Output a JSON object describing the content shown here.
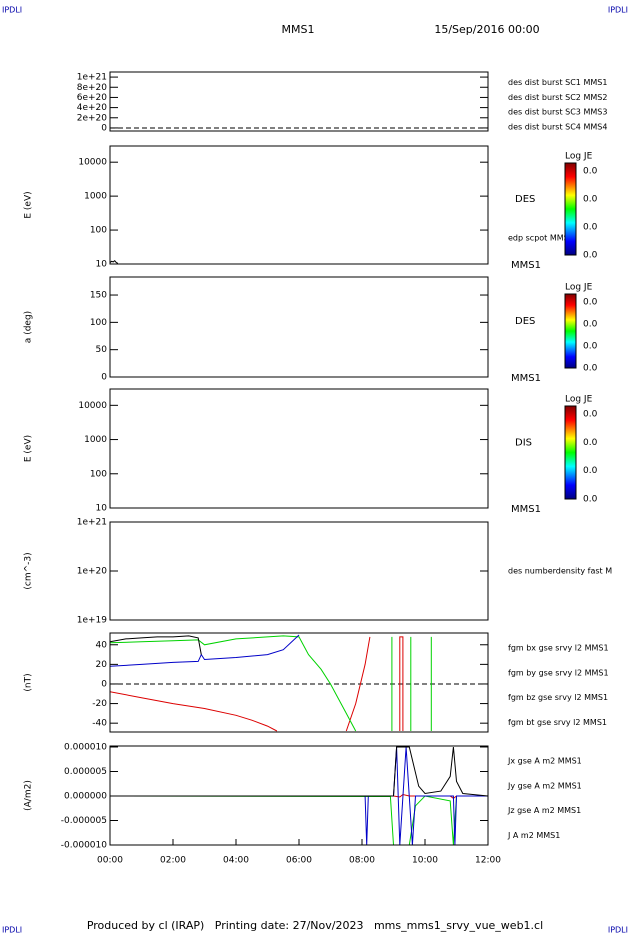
{
  "header": {
    "corner_left": "IPDLI",
    "corner_right": "IPDLI",
    "probe": "MMS1",
    "date": "15/Sep/2016 00:00"
  },
  "footer": {
    "text": "Produced by cl (IRAP)   Printing date: 27/Nov/2023   mms_mms1_srvy_vue_web1.cl",
    "corner_left": "IPDLI",
    "corner_right": "IPDLI"
  },
  "chart_data": [
    {
      "type": "line",
      "xlim": [
        0,
        12
      ],
      "ylim": [
        -6e+19,
        1.1e+21
      ],
      "yticks": [
        0,
        {
          "value": 2e+20,
          "label": "2e+20"
        },
        {
          "value": 4e+20,
          "label": "4e+20"
        },
        {
          "value": 6e+20,
          "label": "6e+20"
        },
        {
          "value": 8e+20,
          "label": "8e+20"
        },
        {
          "value": 1e+21,
          "label": "1e+21"
        }
      ],
      "zero_line": true,
      "series": [
        {
          "name": "des dist burst SC1 MMS1",
          "color": "#0000c8",
          "x": [],
          "values": []
        },
        {
          "name": "des dist burst SC2 MMS2",
          "color": "#c800c8",
          "x": [],
          "values": []
        },
        {
          "name": "des dist burst SC3 MMS3",
          "color": "#c80000",
          "x": [],
          "values": []
        },
        {
          "name": "des dist burst SC4 MMS4",
          "color": "#00c800",
          "x": [],
          "values": []
        }
      ]
    },
    {
      "type": "line",
      "ylabel": "E (eV)",
      "log": true,
      "xlim": [
        0,
        12
      ],
      "ylim": [
        10,
        30000
      ],
      "yticks": [
        10,
        100,
        1000,
        10000
      ],
      "label": "DES",
      "note": "edp scpot MMS1",
      "probe": "MMS1",
      "series": [
        {
          "color": "#000000",
          "x": [
            0,
            0.05,
            0.1,
            0.15,
            0.2,
            0.25
          ],
          "values": [
            11,
            12,
            11.5,
            12.5,
            11,
            10.5
          ]
        }
      ],
      "colorbar": {
        "title": "Log JE",
        "ticks": [
          "0.0",
          "0.0",
          "0.0",
          "0.0"
        ]
      }
    },
    {
      "type": "line",
      "ylabel": "a (deg)",
      "xlim": [
        0,
        12
      ],
      "ylim": [
        0,
        183
      ],
      "yticks": [
        0,
        50,
        100,
        150
      ],
      "label": "DES",
      "probe": "MMS1",
      "series": [],
      "colorbar": {
        "title": "Log JE",
        "ticks": [
          "0.0",
          "0.0",
          "0.0",
          "0.0"
        ]
      }
    },
    {
      "type": "line",
      "ylabel": "E (eV)",
      "log": true,
      "xlim": [
        0,
        12
      ],
      "ylim": [
        10,
        30000
      ],
      "yticks": [
        10,
        100,
        1000,
        10000
      ],
      "label": "DIS",
      "probe": "MMS1",
      "series": [],
      "colorbar": {
        "title": "Log JE",
        "ticks": [
          "0.0",
          "0.0",
          "0.0",
          "0.0"
        ]
      }
    },
    {
      "type": "line",
      "ylabel": "(cm^-3)",
      "log": true,
      "xlim": [
        0,
        12
      ],
      "ylim": [
        1e+19,
        1e+21
      ],
      "yticks": [
        {
          "value": 1e+19,
          "label": "1e+19"
        },
        {
          "value": 1e+20,
          "label": "1e+20"
        },
        {
          "value": 1e+21,
          "label": "1e+21"
        }
      ],
      "note": "des numberdensity fast M",
      "series": []
    },
    {
      "type": "line",
      "ylabel": "(nT)",
      "xlim": [
        0,
        12
      ],
      "ylim": [
        -49,
        52
      ],
      "yticks": [
        -40,
        -20,
        0,
        20,
        40
      ],
      "zero_line": true,
      "series": [
        {
          "name": "fgm bx gse srvy l2 MMS1",
          "color": "#dc0000",
          "x": [
            0,
            1,
            2,
            3,
            4,
            4.5,
            5,
            5.3,
            6,
            7.5,
            7.8,
            8.1,
            8.25,
            8.5,
            9.2,
            9.2,
            9.3,
            9.3
          ],
          "values": [
            -8,
            -14,
            -20,
            -25,
            -32,
            -37,
            -43,
            -48,
            null,
            -48,
            -20,
            20,
            48,
            null,
            -48,
            48,
            48,
            -48
          ]
        },
        {
          "name": "fgm by gse srvy l2 MMS1",
          "color": "#00d200",
          "x": [
            0,
            1,
            2,
            2.8,
            3,
            4,
            5,
            5.5,
            6,
            6.3,
            6.7,
            7,
            7.5,
            7.8,
            7.9,
            8.95,
            8.95,
            9.2,
            9.55,
            9.55,
            9.8,
            10.2,
            10.2
          ],
          "values": [
            42,
            43,
            44,
            45,
            40,
            46,
            48,
            49,
            48,
            30,
            15,
            0,
            -30,
            -48,
            null,
            -48,
            48,
            null,
            48,
            -48,
            null,
            -48,
            48
          ]
        },
        {
          "name": "fgm bz gse srvy l2 MMS1",
          "color": "#0000c8",
          "x": [
            0,
            1,
            2,
            2.8,
            2.9,
            3,
            4,
            5,
            5.5,
            6
          ],
          "values": [
            18,
            20,
            22,
            23,
            30,
            25,
            27,
            30,
            35,
            50
          ]
        },
        {
          "name": "fgm bt gse srvy l2 MMS1",
          "color": "#000000",
          "x": [
            0,
            0.5,
            1,
            1.5,
            2,
            2.5,
            2.8,
            2.9
          ],
          "values": [
            43,
            46,
            47,
            48,
            48,
            49,
            47,
            30
          ]
        }
      ]
    },
    {
      "type": "line",
      "ylabel": "(A/m2)",
      "xlim": [
        0,
        12
      ],
      "ylim": [
        -1e-05,
        1.02e-05
      ],
      "yticks": [
        {
          "value": -1e-05,
          "label": "-0.000010"
        },
        {
          "value": -5e-06,
          "label": "-0.000005"
        },
        {
          "value": 0,
          "label": "0.000000"
        },
        {
          "value": 5e-06,
          "label": "0.000005"
        },
        {
          "value": 1e-05,
          "label": "0.000010"
        }
      ],
      "xticks": [
        {
          "value": 0,
          "label": "00:00"
        },
        {
          "value": 2,
          "label": "02:00"
        },
        {
          "value": 4,
          "label": "04:00"
        },
        {
          "value": 6,
          "label": "06:00"
        },
        {
          "value": 8,
          "label": "08:00"
        },
        {
          "value": 10,
          "label": "10:00"
        },
        {
          "value": 12,
          "label": "12:00"
        }
      ],
      "series": [
        {
          "name": "Jx gse A m2 MMS1",
          "color": "#dc0000",
          "x": [
            0,
            8,
            9,
            9.2,
            9.3,
            9.5,
            10,
            10.8,
            10.9,
            11,
            12
          ],
          "values": [
            0,
            0,
            0,
            -2e-07,
            3e-07,
            0,
            0,
            0,
            -5e-07,
            0,
            0
          ]
        },
        {
          "name": "Jy gse A m2 MMS1",
          "color": "#00d200",
          "x": [
            0,
            8.9,
            9,
            9.2,
            9.5,
            9.7,
            10,
            10.8,
            10.9,
            11,
            12
          ],
          "values": [
            0,
            -1e-07,
            -1e-05,
            -1e-05,
            -1e-05,
            -2e-06,
            0,
            -1e-06,
            -1e-05,
            0,
            0
          ]
        },
        {
          "name": "Jz gse A m2 MMS1",
          "color": "#0000c8",
          "x": [
            0,
            8.1,
            8.15,
            8.2,
            9,
            9.1,
            9.2,
            9.4,
            9.6,
            9.7,
            10,
            10.9,
            10.95,
            11,
            12
          ],
          "values": [
            0,
            0,
            -1e-05,
            0,
            0,
            1e-05,
            -1e-05,
            1e-05,
            -1e-05,
            0,
            0,
            0,
            -1e-05,
            0,
            0
          ]
        },
        {
          "name": "J A m2 MMS1",
          "color": "#000000",
          "x": [
            0,
            8,
            9,
            9.1,
            9.3,
            9.5,
            9.8,
            10,
            10.5,
            10.8,
            10.9,
            11,
            11.2,
            12
          ],
          "values": [
            0,
            0,
            0,
            1e-05,
            1e-05,
            1e-05,
            2e-06,
            5e-07,
            1e-06,
            4e-06,
            1e-05,
            3e-06,
            5e-07,
            0
          ]
        }
      ]
    }
  ]
}
